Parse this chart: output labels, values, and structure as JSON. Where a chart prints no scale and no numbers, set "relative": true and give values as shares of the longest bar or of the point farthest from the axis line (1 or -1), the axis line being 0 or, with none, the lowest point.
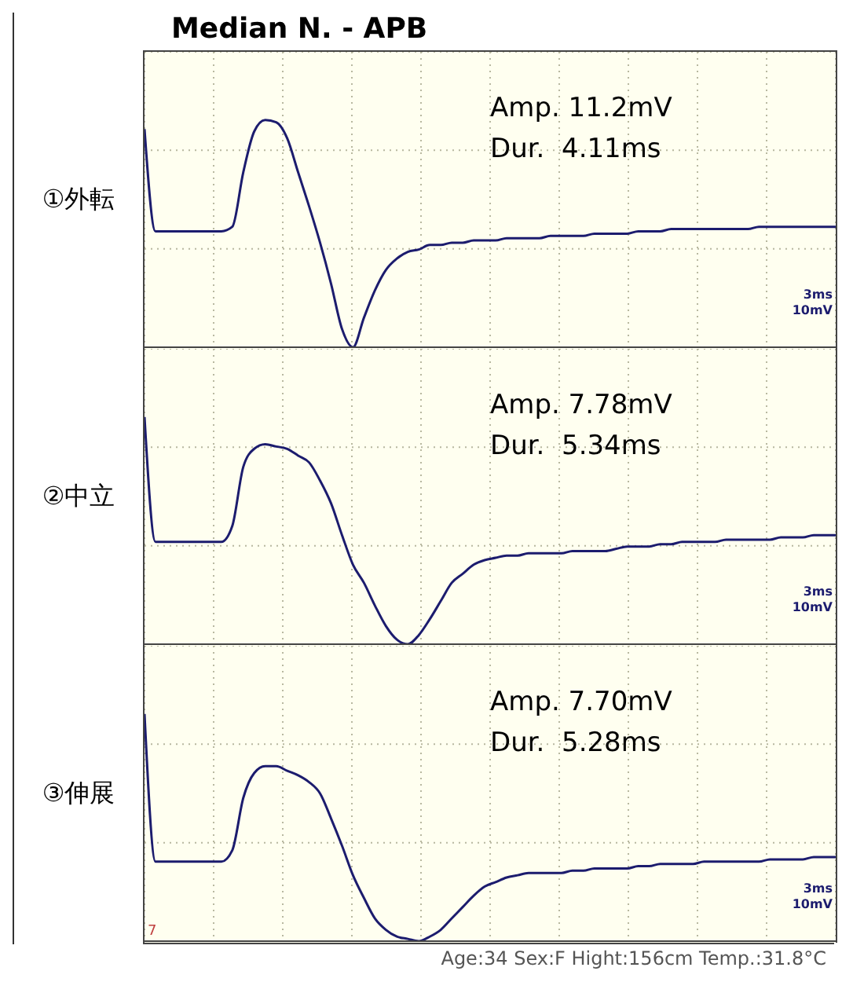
{
  "chart_data": [
    {
      "type": "line",
      "title": "Median N. - APB",
      "ylabel": "①外転",
      "relative": true,
      "grid": true,
      "categories": [
        null,
        null,
        null,
        null,
        null,
        null,
        null,
        null,
        null,
        null,
        null,
        null,
        null,
        null,
        null,
        null,
        null,
        null,
        null,
        null,
        null,
        null,
        null,
        null,
        null,
        null,
        null,
        null,
        null,
        null,
        null,
        null,
        null,
        null,
        null,
        null,
        null,
        null,
        null,
        null,
        null,
        null,
        null,
        null,
        null,
        null,
        null,
        null,
        null,
        null,
        null,
        null,
        null,
        null,
        null,
        null,
        null,
        null,
        null,
        null,
        null,
        null,
        null,
        null
      ],
      "series": [
        {
          "color": "#1c1c6e",
          "values": [
            0.96,
            0.51,
            0.51,
            0.51,
            0.51,
            0.51,
            0.51,
            0.51,
            0.53,
            0.77,
            0.95,
            1,
            0.99,
            0.92,
            0.77,
            0.62,
            0.46,
            0.28,
            0.08,
            0,
            0.13,
            0.25,
            0.34,
            0.39,
            0.42,
            0.43,
            0.45,
            0.45,
            0.46,
            0.46,
            0.47,
            0.47,
            0.47,
            0.48,
            0.48,
            0.48,
            0.48,
            0.49,
            0.49,
            0.49,
            0.49,
            0.5,
            0.5,
            0.5,
            0.5,
            0.51,
            0.51,
            0.51,
            0.52,
            0.52,
            0.52,
            0.52,
            0.52,
            0.52,
            0.52,
            0.52,
            0.53,
            0.53,
            0.53,
            0.53,
            0.53,
            0.53,
            0.53,
            0.53
          ]
        }
      ],
      "annotations": [
        "Amp. 11.2mV",
        "Dur.  4.11ms",
        "3ms",
        "10mV"
      ]
    },
    {
      "type": "line",
      "ylabel": "②中立",
      "relative": true,
      "grid": true,
      "categories": [
        null,
        null,
        null,
        null,
        null,
        null,
        null,
        null,
        null,
        null,
        null,
        null,
        null,
        null,
        null,
        null,
        null,
        null,
        null,
        null,
        null,
        null,
        null,
        null,
        null,
        null,
        null,
        null,
        null,
        null,
        null,
        null,
        null,
        null,
        null,
        null,
        null,
        null,
        null,
        null,
        null,
        null,
        null,
        null,
        null,
        null,
        null,
        null,
        null,
        null,
        null,
        null,
        null,
        null,
        null,
        null,
        null,
        null,
        null,
        null,
        null,
        null,
        null,
        null
      ],
      "series": [
        {
          "color": "#1c1c6e",
          "values": [
            1,
            0.45,
            0.45,
            0.45,
            0.45,
            0.45,
            0.45,
            0.45,
            0.52,
            0.78,
            0.86,
            0.88,
            0.87,
            0.86,
            0.83,
            0.8,
            0.72,
            0.62,
            0.48,
            0.35,
            0.27,
            0.17,
            0.08,
            0.02,
            0,
            0.04,
            0.11,
            0.19,
            0.27,
            0.31,
            0.35,
            0.37,
            0.38,
            0.39,
            0.39,
            0.4,
            0.4,
            0.4,
            0.4,
            0.41,
            0.41,
            0.41,
            0.41,
            0.42,
            0.43,
            0.43,
            0.43,
            0.44,
            0.44,
            0.45,
            0.45,
            0.45,
            0.45,
            0.46,
            0.46,
            0.46,
            0.46,
            0.46,
            0.47,
            0.47,
            0.47,
            0.48,
            0.48,
            0.48
          ]
        }
      ],
      "annotations": [
        "Amp. 7.78mV",
        "Dur.  5.34ms",
        "3ms",
        "10mV"
      ]
    },
    {
      "type": "line",
      "ylabel": "③伸展",
      "relative": true,
      "grid": true,
      "categories": [
        null,
        null,
        null,
        null,
        null,
        null,
        null,
        null,
        null,
        null,
        null,
        null,
        null,
        null,
        null,
        null,
        null,
        null,
        null,
        null,
        null,
        null,
        null,
        null,
        null,
        null,
        null,
        null,
        null,
        null,
        null,
        null,
        null,
        null,
        null,
        null,
        null,
        null,
        null,
        null,
        null,
        null,
        null,
        null,
        null,
        null,
        null,
        null,
        null,
        null,
        null,
        null,
        null,
        null,
        null,
        null,
        null,
        null,
        null,
        null,
        null,
        null,
        null,
        null
      ],
      "series": [
        {
          "color": "#1c1c6e",
          "values": [
            1,
            0.35,
            0.35,
            0.35,
            0.35,
            0.35,
            0.35,
            0.35,
            0.4,
            0.63,
            0.74,
            0.77,
            0.77,
            0.75,
            0.73,
            0.7,
            0.65,
            0.54,
            0.42,
            0.29,
            0.19,
            0.1,
            0.05,
            0.02,
            0.01,
            0,
            0.02,
            0.05,
            0.1,
            0.15,
            0.2,
            0.24,
            0.26,
            0.28,
            0.29,
            0.3,
            0.3,
            0.3,
            0.3,
            0.31,
            0.31,
            0.32,
            0.32,
            0.32,
            0.32,
            0.33,
            0.33,
            0.34,
            0.34,
            0.34,
            0.34,
            0.35,
            0.35,
            0.35,
            0.35,
            0.35,
            0.35,
            0.36,
            0.36,
            0.36,
            0.36,
            0.37,
            0.37,
            0.37
          ]
        }
      ],
      "annotations": [
        "Amp. 7.70mV",
        "Dur.  5.28ms",
        "3ms",
        "10mV",
        "Age:34 Sex:F Hight:156cm Temp.:31.8°C",
        "7"
      ]
    }
  ]
}
